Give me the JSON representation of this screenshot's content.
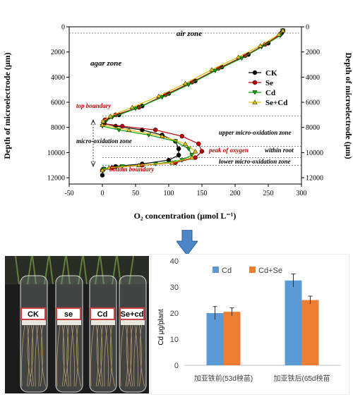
{
  "chart_data": [
    {
      "type": "line",
      "xlabel": "O₂ concentration (μmol L⁻¹)",
      "ylabel": "Depth of microelectrode (μm)",
      "ylabel_right": "Depth of microelectrode (μm)",
      "xlim": [
        -50,
        300
      ],
      "ylim": [
        0,
        12500
      ],
      "y_inverted": true,
      "xticks": [
        -50,
        0,
        50,
        100,
        150,
        200,
        250,
        300
      ],
      "yticks": [
        0,
        2000,
        4000,
        6000,
        8000,
        10000,
        12000
      ],
      "legend_position": "top-right",
      "series": [
        {
          "name": "CK",
          "color": "#000000",
          "marker": "circle",
          "points": [
            [
              272,
              300
            ],
            [
              270,
              500
            ],
            [
              250,
              1300
            ],
            [
              220,
              2200
            ],
            [
              180,
              3200
            ],
            [
              140,
              4300
            ],
            [
              100,
              5300
            ],
            [
              60,
              6300
            ],
            [
              25,
              7000
            ],
            [
              5,
              7400
            ],
            [
              3,
              7700
            ],
            [
              20,
              7900
            ],
            [
              60,
              8200
            ],
            [
              90,
              8600
            ],
            [
              110,
              9100
            ],
            [
              115,
              9700
            ],
            [
              115,
              10200
            ],
            [
              100,
              10600
            ],
            [
              60,
              10900
            ],
            [
              20,
              11100
            ],
            [
              2,
              11300
            ],
            [
              0,
              11800
            ]
          ]
        },
        {
          "name": "Se",
          "color": "#c00000",
          "marker": "circle",
          "points": [
            [
              272,
              300
            ],
            [
              268,
              600
            ],
            [
              245,
              1400
            ],
            [
              215,
              2300
            ],
            [
              175,
              3300
            ],
            [
              135,
              4400
            ],
            [
              95,
              5400
            ],
            [
              55,
              6400
            ],
            [
              20,
              7000
            ],
            [
              4,
              7400
            ],
            [
              2,
              7700
            ],
            [
              30,
              7900
            ],
            [
              80,
              8200
            ],
            [
              120,
              8700
            ],
            [
              145,
              9300
            ],
            [
              150,
              9900
            ],
            [
              140,
              10400
            ],
            [
              110,
              10800
            ],
            [
              60,
              11000
            ],
            [
              15,
              11200
            ],
            [
              0,
              11400
            ]
          ]
        },
        {
          "name": "Cd",
          "color": "#00a000",
          "marker": "triangle-down",
          "points": [
            [
              272,
              300
            ],
            [
              268,
              700
            ],
            [
              240,
              1600
            ],
            [
              210,
              2500
            ],
            [
              170,
              3500
            ],
            [
              130,
              4600
            ],
            [
              90,
              5600
            ],
            [
              50,
              6500
            ],
            [
              15,
              7200
            ],
            [
              2,
              7600
            ],
            [
              0,
              7900
            ],
            [
              25,
              8200
            ],
            [
              70,
              8600
            ],
            [
              110,
              9100
            ],
            [
              130,
              9700
            ],
            [
              135,
              10200
            ],
            [
              120,
              10600
            ],
            [
              80,
              10900
            ],
            [
              30,
              11100
            ],
            [
              2,
              11300
            ]
          ]
        },
        {
          "name": "Se+Cd",
          "color": "#e0c000",
          "marker": "triangle-up",
          "points": [
            [
              272,
              300
            ],
            [
              266,
              600
            ],
            [
              238,
              1500
            ],
            [
              205,
              2400
            ],
            [
              165,
              3400
            ],
            [
              125,
              4500
            ],
            [
              85,
              5500
            ],
            [
              45,
              6400
            ],
            [
              12,
              7100
            ],
            [
              1,
              7500
            ],
            [
              0,
              7800
            ],
            [
              40,
              8200
            ],
            [
              90,
              8700
            ],
            [
              125,
              9300
            ],
            [
              140,
              9900
            ],
            [
              135,
              10400
            ],
            [
              105,
              10800
            ],
            [
              55,
              11000
            ],
            [
              10,
              11200
            ],
            [
              0,
              11400
            ]
          ]
        }
      ],
      "annotations": {
        "air_zone": "air zone",
        "agar_zone": "agar zone",
        "top_boundary": "top boundary",
        "micro_oxidation_zone": "micro-oxidation zone",
        "upper_micro_oxidation_zone": "upper micro-oxidation zone",
        "peak_of_oxygen": "peak of oxygen",
        "within_root": "within root",
        "lower_micro_oxidation_zone": "lower micro-oxidation zone",
        "bottom_boundary": "bottom boundary"
      },
      "colors": {
        "highlight_text": "#c00000"
      }
    },
    {
      "type": "bar",
      "ylabel": "Cd   μg/plant",
      "ylim": [
        0,
        40
      ],
      "yticks": [
        0,
        10,
        20,
        30,
        40
      ],
      "categories": [
        "加亚铁前(53d秧苗)",
        "加亚铁后(65d秧苗"
      ],
      "legend_position": "top",
      "series": [
        {
          "name": "Cd",
          "color": "#5b9bd5",
          "values": [
            20.0,
            32.5
          ],
          "errors": [
            2.5,
            2.5
          ]
        },
        {
          "name": "Cd+Se",
          "color": "#ed7d31",
          "values": [
            20.5,
            25.0
          ],
          "errors": [
            1.5,
            1.5
          ]
        }
      ]
    }
  ],
  "photo": {
    "tube_labels": [
      "CK",
      "se",
      "Cd",
      "Se+cd"
    ]
  }
}
